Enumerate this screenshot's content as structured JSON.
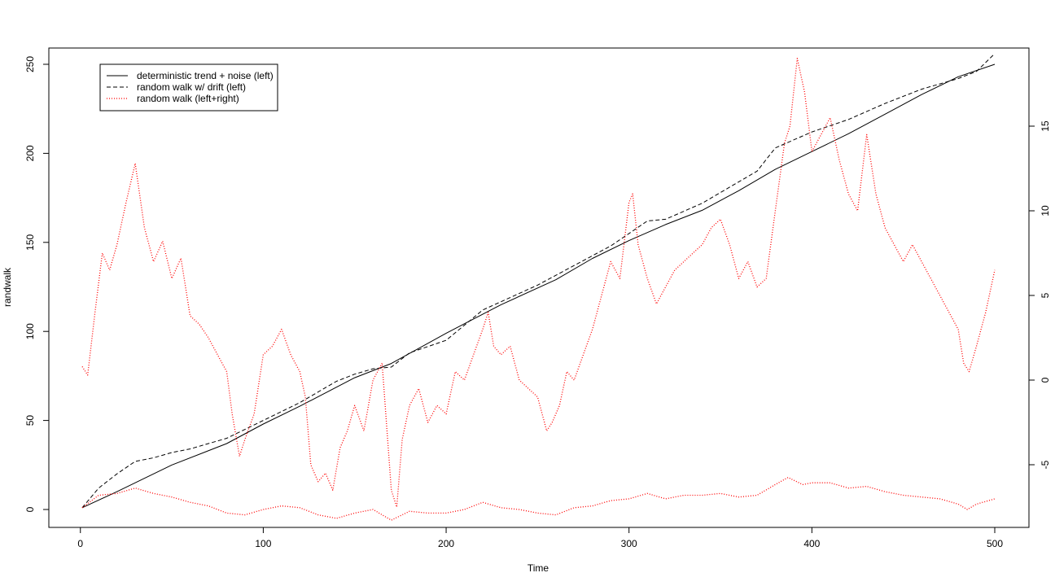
{
  "chart_data": {
    "type": "line",
    "title": "",
    "xlabel": "Time",
    "ylabel": "randwalk",
    "xlim": [
      1,
      500
    ],
    "ylim_left": [
      0,
      255
    ],
    "ylim_right": [
      -8,
      18.7
    ],
    "x_ticks": [
      0,
      100,
      200,
      300,
      400,
      500
    ],
    "y_ticks_left": [
      0,
      50,
      100,
      150,
      200,
      250
    ],
    "y_ticks_right": [
      -5,
      0,
      5,
      10,
      15
    ],
    "legend_position": "top-left",
    "grid": false,
    "series": [
      {
        "name": "deterministic trend + noise (left)",
        "axis": "left",
        "color": "#000000",
        "dash": "solid",
        "x": [
          1,
          20,
          50,
          80,
          100,
          120,
          150,
          170,
          200,
          230,
          260,
          280,
          300,
          320,
          340,
          360,
          380,
          400,
          420,
          440,
          460,
          480,
          500
        ],
        "y": [
          1,
          10,
          25,
          37,
          48,
          58,
          74,
          82,
          99,
          115,
          129,
          141,
          151,
          160,
          168,
          179,
          191,
          201,
          211,
          222,
          233,
          243,
          250
        ]
      },
      {
        "name": "random walk w/ drift (left)",
        "axis": "left",
        "color": "#000000",
        "dash": "dashed",
        "x": [
          1,
          10,
          20,
          30,
          40,
          50,
          60,
          70,
          80,
          100,
          120,
          130,
          140,
          150,
          160,
          170,
          180,
          200,
          220,
          250,
          270,
          290,
          300,
          310,
          320,
          340,
          360,
          370,
          380,
          400,
          420,
          440,
          460,
          480,
          490,
          500
        ],
        "y": [
          1,
          12,
          20,
          27,
          29,
          32,
          34,
          37,
          40,
          50,
          60,
          66,
          72,
          76,
          79,
          80,
          88,
          95,
          112,
          126,
          137,
          148,
          155,
          162,
          163,
          172,
          184,
          190,
          203,
          212,
          219,
          228,
          236,
          242,
          246,
          256
        ]
      },
      {
        "name": "random walk (left+right)",
        "axis": "left",
        "color": "#ff0000",
        "dash": "dotted",
        "x": [
          1,
          10,
          20,
          30,
          40,
          50,
          60,
          70,
          80,
          90,
          100,
          110,
          120,
          130,
          140,
          150,
          160,
          170,
          180,
          190,
          200,
          210,
          220,
          230,
          240,
          250,
          260,
          270,
          280,
          290,
          300,
          310,
          320,
          330,
          340,
          350,
          360,
          370,
          380,
          387,
          395,
          400,
          410,
          420,
          430,
          440,
          450,
          460,
          470,
          480,
          485,
          490,
          500
        ],
        "y": [
          1,
          8,
          9,
          12,
          9,
          7,
          4,
          2,
          -2,
          -3,
          0,
          2,
          1,
          -3,
          -5,
          -2,
          0,
          -6,
          -1,
          -2,
          -2,
          0,
          4,
          1,
          0,
          -2,
          -3,
          1,
          2,
          5,
          6,
          9,
          6,
          8,
          8,
          9,
          7,
          8,
          14,
          18,
          14,
          15,
          15,
          12,
          13,
          10,
          8,
          7,
          6,
          3,
          0,
          3,
          6
        ]
      },
      {
        "name": "random walk (left+right)",
        "axis": "right",
        "color": "#ff0000",
        "dash": "dotted",
        "x": [
          1,
          4,
          8,
          12,
          16,
          20,
          25,
          30,
          35,
          40,
          45,
          50,
          55,
          60,
          65,
          70,
          75,
          80,
          83,
          87,
          90,
          95,
          100,
          105,
          110,
          115,
          120,
          123,
          126,
          130,
          134,
          138,
          142,
          146,
          150,
          155,
          160,
          165,
          170,
          173,
          176,
          180,
          185,
          190,
          195,
          200,
          205,
          210,
          215,
          220,
          223,
          226,
          230,
          235,
          240,
          245,
          250,
          255,
          258,
          262,
          266,
          270,
          275,
          280,
          285,
          290,
          295,
          300,
          302,
          305,
          310,
          315,
          320,
          325,
          330,
          335,
          340,
          345,
          350,
          355,
          360,
          365,
          370,
          375,
          380,
          385,
          388,
          392,
          396,
          400,
          405,
          410,
          415,
          420,
          425,
          430,
          435,
          440,
          445,
          450,
          455,
          460,
          465,
          470,
          475,
          480,
          483,
          486,
          490,
          495,
          500
        ],
        "y": [
          0.8,
          0.3,
          4.0,
          7.5,
          6.5,
          8.0,
          10.5,
          12.8,
          9.0,
          7.0,
          8.2,
          6.0,
          7.2,
          3.8,
          3.3,
          2.5,
          1.5,
          0.5,
          -2.0,
          -4.5,
          -3.5,
          -2.0,
          1.5,
          2.0,
          3.0,
          1.5,
          0.5,
          -1.0,
          -5.0,
          -6.0,
          -5.5,
          -6.5,
          -4.0,
          -3.0,
          -1.5,
          -3.0,
          0.0,
          1.0,
          -6.5,
          -7.5,
          -3.5,
          -1.5,
          -0.5,
          -2.5,
          -1.5,
          -2.0,
          0.5,
          0.0,
          1.5,
          3.0,
          4.0,
          2.0,
          1.5,
          2.0,
          0.0,
          -0.5,
          -1.0,
          -3.0,
          -2.5,
          -1.5,
          0.5,
          0.0,
          1.5,
          3.0,
          5.0,
          7.0,
          6.0,
          10.5,
          11.0,
          8.0,
          6.0,
          4.5,
          5.5,
          6.5,
          7.0,
          7.5,
          8.0,
          9.0,
          9.5,
          8.0,
          6.0,
          7.0,
          5.5,
          6.0,
          10.0,
          14.0,
          15.0,
          19.0,
          17.0,
          13.5,
          14.5,
          15.5,
          13.0,
          11.0,
          10.0,
          14.5,
          11.0,
          9.0,
          8.0,
          7.0,
          8.0,
          7.0,
          6.0,
          5.0,
          4.0,
          3.0,
          1.0,
          0.5,
          2.0,
          4.0,
          6.5
        ]
      }
    ]
  }
}
